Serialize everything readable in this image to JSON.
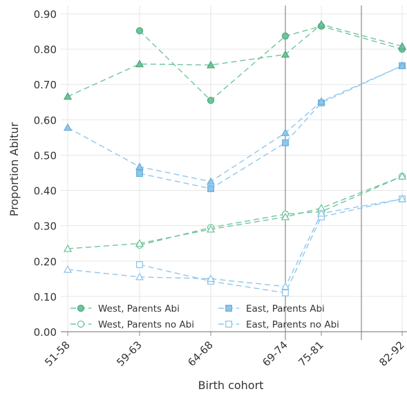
{
  "chart_data": {
    "type": "line",
    "title": "",
    "xlabel": "Birth cohort",
    "ylabel": "Proportion Abitur",
    "categories": [
      "51-58",
      "59-63",
      "64-68",
      "69-74",
      "75-81",
      "82-92"
    ],
    "ylim": [
      0,
      0.9
    ],
    "y_ticks": [
      "0.00",
      "0.10",
      "0.20",
      "0.30",
      "0.40",
      "0.50",
      "0.60",
      "0.70",
      "0.80",
      "0.90"
    ],
    "grid": true,
    "vertical_reference_lines_between": [
      [
        "69-74",
        "75-81"
      ],
      [
        "75-81",
        "82-92"
      ]
    ],
    "series": [
      {
        "key": "west_abi_circle",
        "marker": "circle",
        "filled": true,
        "color": "#6fc49b",
        "values": [
          null,
          0.852,
          0.655,
          0.837,
          0.865,
          0.8
        ]
      },
      {
        "key": "west_abi_triangle",
        "marker": "triangle",
        "filled": true,
        "color": "#6fc49b",
        "values": [
          0.666,
          0.758,
          0.755,
          0.785,
          0.87,
          0.808
        ]
      },
      {
        "key": "west_noabi_circle",
        "marker": "circle",
        "filled": false,
        "color": "#6fc49b",
        "values": [
          null,
          0.245,
          0.295,
          0.333,
          0.34,
          0.44
        ]
      },
      {
        "key": "west_noabi_triangle",
        "marker": "triangle",
        "filled": false,
        "color": "#6fc49b",
        "values": [
          0.235,
          0.25,
          0.29,
          0.325,
          0.35,
          0.44
        ]
      },
      {
        "key": "east_abi_square",
        "marker": "square",
        "filled": true,
        "color": "#8ec7ec",
        "values": [
          null,
          0.448,
          0.405,
          0.535,
          0.648,
          0.753
        ]
      },
      {
        "key": "east_abi_triangle",
        "marker": "triangle",
        "filled": true,
        "color": "#8ec7ec",
        "values": [
          0.578,
          0.467,
          0.425,
          0.563,
          0.652,
          0.753
        ]
      },
      {
        "key": "east_noabi_square",
        "marker": "square",
        "filled": false,
        "color": "#8ec7ec",
        "values": [
          null,
          0.19,
          0.143,
          0.11,
          0.325,
          0.376
        ]
      },
      {
        "key": "east_noabi_triangle",
        "marker": "triangle",
        "filled": false,
        "color": "#8ec7ec",
        "values": [
          0.176,
          0.155,
          0.15,
          0.128,
          0.335,
          0.376
        ]
      }
    ],
    "legend": {
      "placement": "bottom-left",
      "entries": [
        {
          "label": "West, Parents Abi",
          "marker": "circle",
          "filled": true,
          "color": "#6fc49b"
        },
        {
          "label": "West, Parents no Abi",
          "marker": "circle",
          "filled": false,
          "color": "#6fc49b"
        },
        {
          "label": "East, Parents Abi",
          "marker": "square",
          "filled": true,
          "color": "#8ec7ec"
        },
        {
          "label": "East, Parents no Abi",
          "marker": "square",
          "filled": false,
          "color": "#8ec7ec"
        }
      ]
    }
  }
}
